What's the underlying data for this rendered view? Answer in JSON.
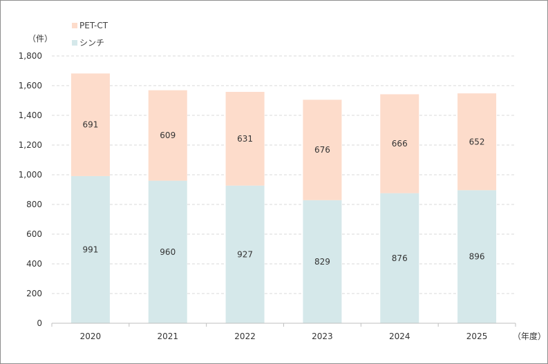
{
  "chart_data": {
    "type": "bar",
    "stacked": true,
    "categories": [
      "2020",
      "2021",
      "2022",
      "2023",
      "2024",
      "2025"
    ],
    "series": [
      {
        "name": "シンチ",
        "values": [
          991,
          960,
          927,
          829,
          876,
          896
        ],
        "color": "#d5e8ea"
      },
      {
        "name": "PET-CT",
        "values": [
          691,
          609,
          631,
          676,
          666,
          652
        ],
        "color": "#fddccb"
      }
    ],
    "ylim": [
      0,
      1800
    ],
    "yticks": [
      0,
      200,
      400,
      600,
      800,
      1000,
      1200,
      1400,
      1600,
      1800
    ],
    "ytick_labels": [
      "0",
      "200",
      "400",
      "600",
      "800",
      "1,000",
      "1,200",
      "1,400",
      "1,600",
      "1,800"
    ],
    "ylabel": "（件）",
    "xlabel": "（年度）",
    "grid": true,
    "legend_position": "top-left",
    "gridline_color": "#d9d9d9",
    "axis_color": "#bfbfbf"
  }
}
